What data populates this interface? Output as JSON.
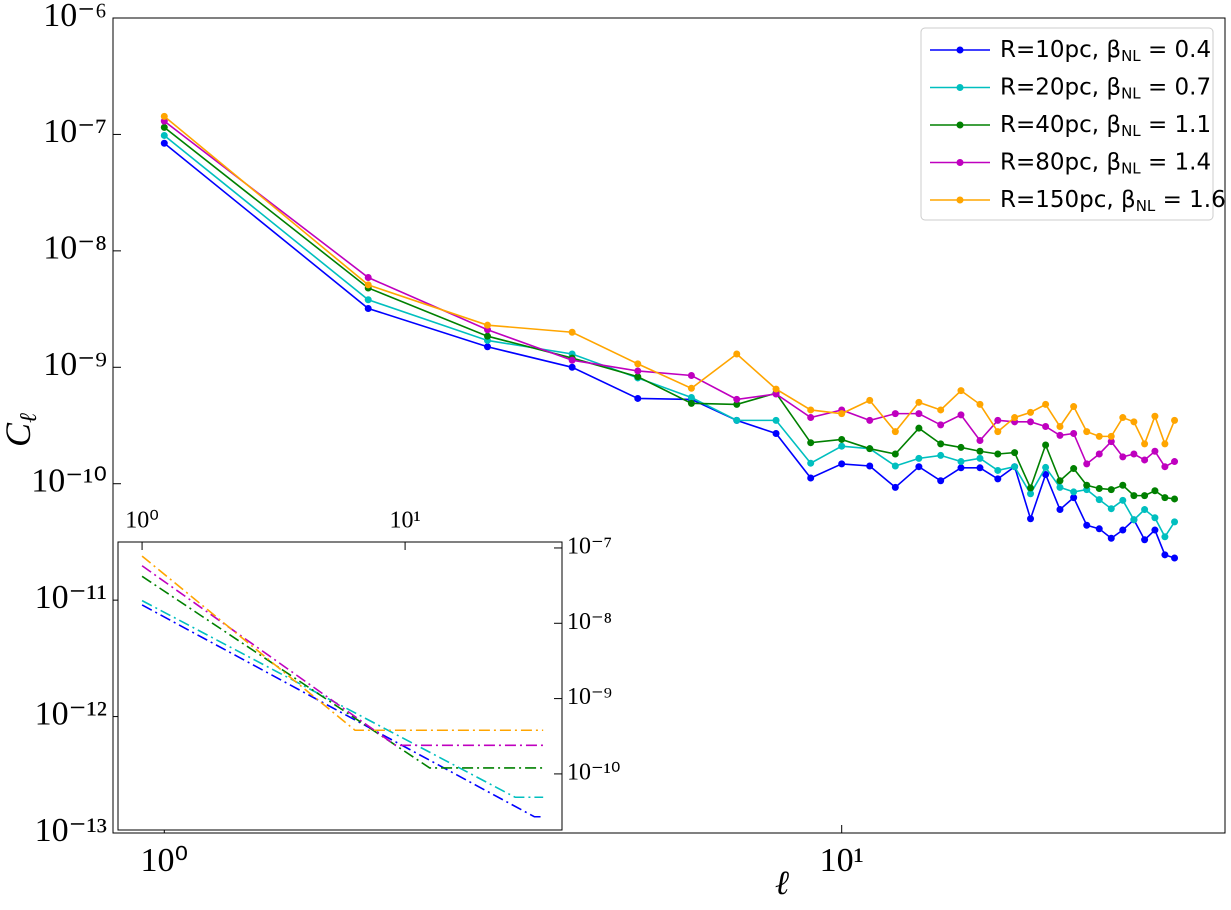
{
  "chart_data": [
    {
      "type": "line",
      "xlabel": "ℓ",
      "ylabel": "Cℓ",
      "xscale": "log",
      "yscale": "log",
      "legend": "upper right",
      "markers": true,
      "linestyle": "-",
      "xlim": [
        0.84,
        36.8
      ],
      "ylim": [
        1e-13,
        1e-06
      ],
      "xticks": [
        {
          "value": 1,
          "label": "10⁰"
        },
        {
          "value": 10,
          "label": "10¹"
        }
      ],
      "yticks": [
        {
          "value": 1e-13,
          "label": "10⁻¹³"
        },
        {
          "value": 1e-12,
          "label": "10⁻¹²"
        },
        {
          "value": 1e-11,
          "label": "10⁻¹¹"
        },
        {
          "value": 1e-10,
          "label": "10⁻¹⁰"
        },
        {
          "value": 1e-09,
          "label": "10⁻⁹"
        },
        {
          "value": 1e-08,
          "label": "10⁻⁸"
        },
        {
          "value": 1e-07,
          "label": "10⁻⁷"
        },
        {
          "value": 1e-06,
          "label": "10⁻⁶"
        }
      ],
      "x": [
        1,
        2,
        3,
        4,
        5,
        6,
        7,
        8,
        9,
        10,
        11,
        12,
        13,
        14,
        15,
        16,
        17,
        18,
        19,
        20,
        21,
        22,
        23,
        24,
        25,
        26,
        27,
        28,
        29,
        30,
        31
      ],
      "series": [
        {
          "name": "R=10pc, βNL = 0.4",
          "color": "#0000ff",
          "values": [
            8.4e-08,
            3.2e-09,
            1.5e-09,
            1e-09,
            5.4e-10,
            5.3e-10,
            3.5e-10,
            2.7e-10,
            1.12e-10,
            1.48e-10,
            1.42e-10,
            9.3e-11,
            1.4e-10,
            1.06e-10,
            1.37e-10,
            1.37e-10,
            1.1e-10,
            1.4e-10,
            5e-11,
            1.2e-10,
            6e-11,
            7.6e-11,
            4.4e-11,
            4.1e-11,
            3.4e-11,
            4e-11,
            4.9e-11,
            3.3e-11,
            4e-11,
            2.45e-11,
            2.3e-11
          ]
        },
        {
          "name": "R=20pc, βNL = 0.7",
          "color": "#00bfbf",
          "values": [
            9.8e-08,
            3.8e-09,
            1.7e-09,
            1.3e-09,
            8.1e-10,
            5.5e-10,
            3.5e-10,
            3.5e-10,
            1.5e-10,
            2.1e-10,
            2e-10,
            1.42e-10,
            1.65e-10,
            1.75e-10,
            1.55e-10,
            1.65e-10,
            1.3e-10,
            1.4e-10,
            8.2e-11,
            1.38e-10,
            9.3e-11,
            8.5e-11,
            8.9e-11,
            7.3e-11,
            6.1e-11,
            7.2e-11,
            4.9e-11,
            6e-11,
            5.1e-11,
            3.5e-11,
            4.7e-11
          ]
        },
        {
          "name": "R=40pc, βNL = 1.1",
          "color": "#008000",
          "values": [
            1.15e-07,
            4.8e-09,
            1.85e-09,
            1.2e-09,
            8.3e-10,
            4.9e-10,
            4.8e-10,
            6e-10,
            2.25e-10,
            2.4e-10,
            2e-10,
            1.8e-10,
            3e-10,
            2.2e-10,
            2.05e-10,
            1.9e-10,
            1.8e-10,
            1.85e-10,
            9.2e-11,
            2.15e-10,
            1.06e-10,
            1.35e-10,
            9.7e-11,
            9.1e-11,
            8.9e-11,
            9.7e-11,
            7.9e-11,
            7.9e-11,
            8.7e-11,
            7.6e-11,
            7.4e-11
          ]
        },
        {
          "name": "R=80pc, βNL = 1.4",
          "color": "#bf00bf",
          "values": [
            1.3e-07,
            5.9e-09,
            2.1e-09,
            1.15e-09,
            9.3e-10,
            8.5e-10,
            5.3e-10,
            5.9e-10,
            3.7e-10,
            4.3e-10,
            3.5e-10,
            4e-10,
            4e-10,
            3.2e-10,
            3.9e-10,
            2.35e-10,
            3.5e-10,
            3.4e-10,
            3.4e-10,
            3.1e-10,
            2.6e-10,
            2.7e-10,
            1.48e-10,
            1.8e-10,
            2.3e-10,
            1.7e-10,
            1.8e-10,
            1.6e-10,
            1.9e-10,
            1.4e-10,
            1.55e-10
          ]
        },
        {
          "name": "R=150pc, βNL = 1.6",
          "color": "#ffa500",
          "values": [
            1.43e-07,
            5.1e-09,
            2.3e-09,
            2e-09,
            1.07e-09,
            6.6e-10,
            1.3e-09,
            6.5e-10,
            4.3e-10,
            4e-10,
            5.2e-10,
            2.8e-10,
            5e-10,
            4.3e-10,
            6.3e-10,
            4.8e-10,
            2.8e-10,
            3.7e-10,
            4.1e-10,
            4.8e-10,
            3.1e-10,
            4.6e-10,
            2.8e-10,
            2.55e-10,
            2.55e-10,
            3.7e-10,
            3.4e-10,
            2.2e-10,
            3.8e-10,
            2.2e-10,
            3.5e-10
          ]
        }
      ]
    },
    {
      "type": "line",
      "xscale": "log",
      "yscale": "log",
      "markers": false,
      "linestyle": "-.",
      "xlim": [
        0.81,
        39.5
      ],
      "ylim": [
        1.8e-11,
        1.2e-07
      ],
      "xticks": [
        {
          "value": 1,
          "label": "10⁰"
        },
        {
          "value": 10,
          "label": "10¹"
        }
      ],
      "yticks": [
        {
          "value": 1e-10,
          "label": "10⁻¹⁰"
        },
        {
          "value": 1e-09,
          "label": "10⁻⁹"
        },
        {
          "value": 1e-08,
          "label": "10⁻⁸"
        },
        {
          "value": 1e-07,
          "label": "10⁻⁷"
        }
      ],
      "series": [
        {
          "color": "#0000ff",
          "x": [
            1,
            31,
            33.5
          ],
          "values": [
            1.75e-08,
            2.7e-11,
            2.7e-11
          ]
        },
        {
          "color": "#00bfbf",
          "x": [
            1,
            26.2,
            33.5
          ],
          "values": [
            2e-08,
            4.9e-11,
            4.9e-11
          ]
        },
        {
          "color": "#008000",
          "x": [
            1,
            12.4,
            33.5
          ],
          "values": [
            4.2e-08,
            1.2e-10,
            1.2e-10
          ]
        },
        {
          "color": "#bf00bf",
          "x": [
            1,
            9.2,
            33.5
          ],
          "values": [
            5.8e-08,
            2.4e-10,
            2.4e-10
          ]
        },
        {
          "color": "#ffa500",
          "x": [
            1,
            6.45,
            33.5
          ],
          "values": [
            7.8e-08,
            3.8e-10,
            3.8e-10
          ]
        }
      ]
    }
  ]
}
